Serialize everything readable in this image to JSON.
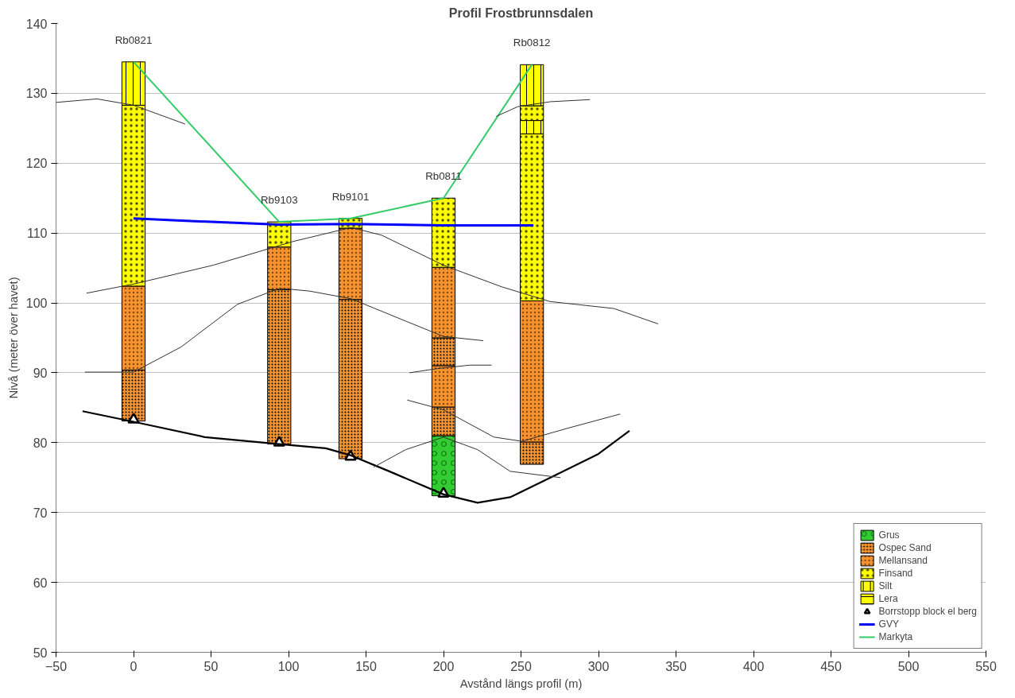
{
  "chart_data": {
    "type": "bar",
    "title": "Profil Frostbrunnsdalen",
    "xlabel": "Avstånd längs profil (m)",
    "ylabel": "Nivå (meter över havet)",
    "xlim": [
      -50,
      550
    ],
    "xticks": [
      -50,
      0,
      50,
      100,
      150,
      200,
      250,
      300,
      350,
      400,
      450,
      500,
      550
    ],
    "ylim": [
      50,
      140
    ],
    "yticks": [
      50,
      60,
      70,
      80,
      90,
      100,
      110,
      120,
      130,
      140
    ],
    "grid": "y",
    "legend": "bottom right",
    "annotations": [
      {
        "text": "Rb0821",
        "x": 0,
        "y": 134.5
      },
      {
        "text": "Rb9103",
        "x": 94,
        "y": 111.6
      },
      {
        "text": "Rb9101",
        "x": 140,
        "y": 112.1
      },
      {
        "text": "Rb0811",
        "x": 200,
        "y": 115.0
      },
      {
        "text": "Rb0812",
        "x": 257,
        "y": 134.1
      }
    ],
    "series": [
      {
        "name": "Grus",
        "color": "#33cc33",
        "x": [
          200
        ],
        "base": [
          72.4
        ],
        "values": [
          8.6
        ]
      },
      {
        "name": "Ospec Sand",
        "color": "#f7932f",
        "x": [
          0,
          94,
          140,
          200,
          257
        ],
        "base": [
          83.1,
          79.8,
          77.7,
          91.0,
          76.9
        ],
        "values": [
          7.3,
          22.1,
          22.8,
          4.0,
          3.2
        ]
      },
      {
        "name": "Mellansand",
        "color": "#f7932f",
        "x": [
          0,
          94,
          140,
          200,
          257
        ],
        "base": [
          90.4,
          101.9,
          100.5,
          95.0,
          80.1
        ],
        "values": [
          12.0,
          6.1,
          10.2,
          10.1,
          20.2
        ]
      },
      {
        "name": "Finsand",
        "color": "#ffff00",
        "x": [
          0,
          94,
          140,
          200,
          257
        ],
        "base": [
          102.4,
          108.0,
          110.7,
          105.1,
          100.3
        ],
        "values": [
          25.9,
          3.6,
          1.4,
          9.9,
          23.9
        ]
      },
      {
        "name": "Silt",
        "color": "#ffff00",
        "x": [
          0,
          257
        ],
        "base": [
          128.3,
          128.2
        ],
        "values": [
          6.2,
          5.9
        ]
      },
      {
        "name": "Lera",
        "color": "#ffff00"
      },
      {
        "color": "#f7932f",
        "x": [
          200
        ],
        "base": [
          81.0
        ],
        "values": [
          4.1
        ]
      },
      {
        "color": "#f7932f",
        "x": [
          200
        ],
        "base": [
          85.1
        ],
        "values": [
          5.9
        ]
      },
      {
        "color": "#ffff00",
        "x": [
          257
        ],
        "base": [
          126.1
        ],
        "values": [
          2.1
        ]
      },
      {
        "color": "#ffff00",
        "x": [
          257
        ],
        "base": [
          124.2
        ],
        "values": [
          1.9
        ]
      },
      {
        "name": "Borrstopp block el berg",
        "type": "scatter",
        "marker": "triangle",
        "color": "#000000",
        "x": [
          0,
          94,
          140,
          200
        ],
        "values": [
          83.3,
          80.0,
          78.0,
          72.7
        ]
      },
      {
        "name": "GVY",
        "type": "line",
        "color": "#0000ff",
        "x": [
          0,
          50,
          94,
          140,
          200,
          258
        ],
        "values": [
          112.1,
          111.6,
          111.2,
          111.3,
          111.1,
          111.1
        ]
      },
      {
        "name": "Markyta",
        "type": "line",
        "color": "#33cc66",
        "x": [
          0,
          94,
          140,
          200,
          257
        ],
        "values": [
          134.5,
          111.6,
          112.1,
          115.0,
          134.1
        ]
      },
      {
        "type": "line",
        "color": "#000000",
        "x": [
          -32.9,
          0,
          46,
          94,
          124,
          140,
          165,
          200,
          222,
          243,
          269,
          300,
          320
        ],
        "values": [
          84.5,
          83.0,
          80.8,
          79.8,
          79.2,
          78.2,
          75.9,
          72.6,
          71.4,
          72.2,
          75.0,
          78.4,
          81.7
        ]
      },
      {
        "type": "line",
        "color": "#333333",
        "x": [
          -50,
          -23.6,
          0,
          33.3
        ],
        "values": [
          128.7,
          129.2,
          128.3,
          125.6
        ]
      },
      {
        "type": "line",
        "color": "#333333",
        "x": [
          234,
          248,
          269,
          294.5
        ],
        "values": [
          126.7,
          128.1,
          128.8,
          129.1
        ]
      },
      {
        "type": "line",
        "color": "#333333",
        "x": [
          -30.3,
          0,
          51.4,
          103,
          140.4,
          160,
          200,
          237.6,
          268.7,
          310,
          338.5
        ],
        "values": [
          101.4,
          102.7,
          105.4,
          108.8,
          110.8,
          109.7,
          105.4,
          102.3,
          100.2,
          99.2,
          97.0
        ]
      },
      {
        "type": "line",
        "color": "#333333",
        "x": [
          -31.4,
          0,
          30.7,
          67,
          94.3,
          113.5,
          140.4,
          175.6,
          200,
          225.7
        ],
        "values": [
          90.1,
          90.1,
          93.7,
          99.8,
          102.1,
          101.7,
          100.6,
          97.4,
          95.2,
          94.6
        ]
      },
      {
        "type": "line",
        "color": "#333333",
        "x": [
          178,
          196,
          217,
          231
        ],
        "values": [
          90.0,
          90.6,
          91.1,
          91.1
        ]
      },
      {
        "type": "line",
        "color": "#333333",
        "x": [
          176.6,
          200,
          232.5,
          250.6,
          279,
          314
        ],
        "values": [
          86.1,
          84.7,
          80.8,
          80.2,
          82.0,
          84.1
        ]
      },
      {
        "type": "line",
        "color": "#333333",
        "x": [
          154.9,
          175.6,
          200,
          222,
          243,
          275.4
        ],
        "values": [
          76.5,
          79.0,
          80.8,
          79.0,
          75.9,
          75.0
        ]
      }
    ]
  }
}
